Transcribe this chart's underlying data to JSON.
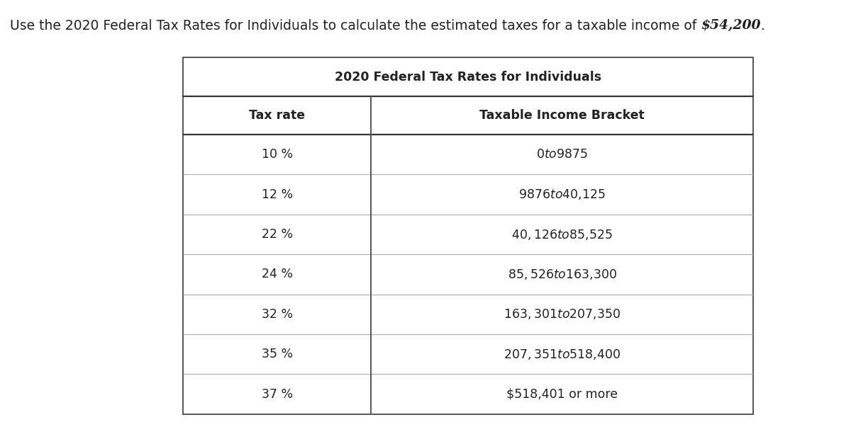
{
  "title_prefix": "Use the 2020 Federal Tax Rates for Individuals to calculate the estimated taxes for a taxable income of ",
  "title_dollar": "$54,200",
  "title_suffix": ".",
  "table_title": "2020 Federal Tax Rates for Individuals",
  "col1_header": "Tax rate",
  "col2_header": "Taxable Income Bracket",
  "rows": [
    [
      "10 %",
      "$0 to $9875"
    ],
    [
      "12 %",
      "$9876 to $40,125"
    ],
    [
      "22 %",
      "$40,126 to $85,525"
    ],
    [
      "24 %",
      "$85,526 to $163,300"
    ],
    [
      "32 %",
      "$163,301 to $207,350"
    ],
    [
      "35 %",
      "$207,351 to $518,400"
    ],
    [
      "37 %",
      "$518,401 or more"
    ]
  ],
  "bg_color": "#ffffff",
  "table_border_color": "#555555",
  "header_line_color": "#333333",
  "row_line_color": "#aaaaaa",
  "text_color": "#222222",
  "title_fontsize": 13.5,
  "table_title_fontsize": 12.5,
  "header_fontsize": 12.5,
  "cell_fontsize": 12.5,
  "figsize": [
    12.0,
    6.03
  ],
  "dpi": 100
}
